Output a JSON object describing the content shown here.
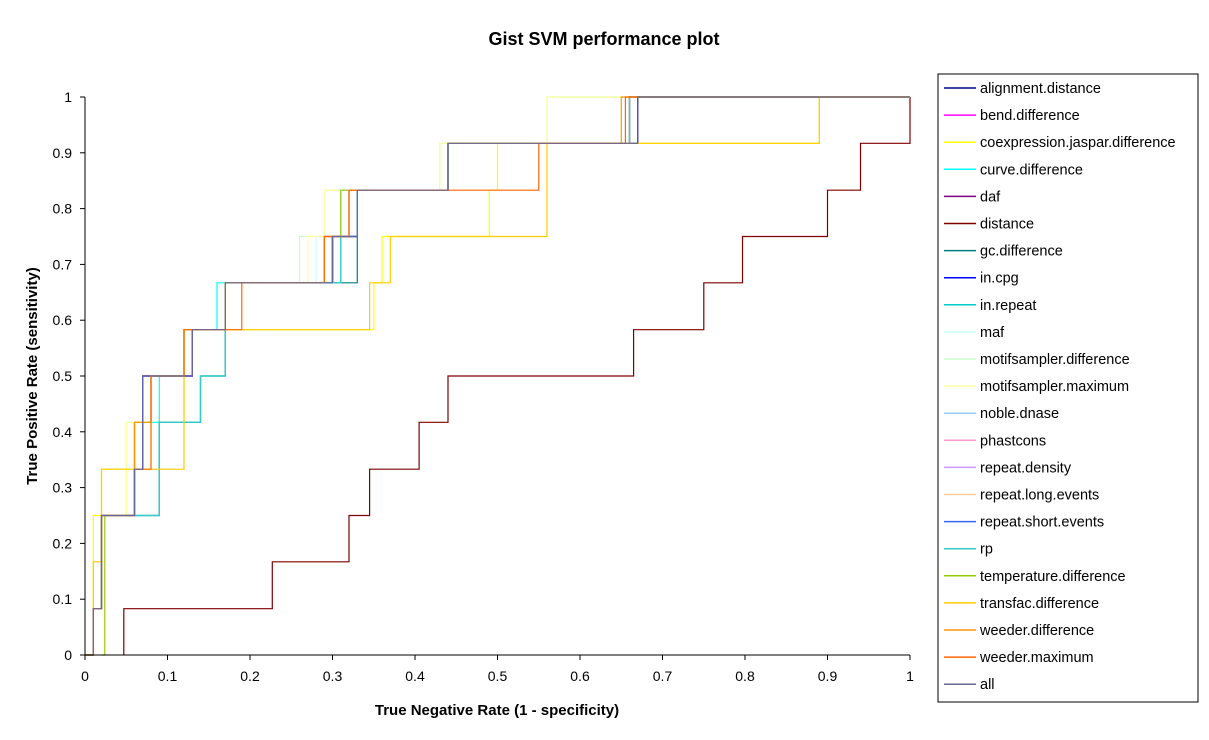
{
  "chart_data": {
    "type": "line",
    "title": "Gist SVM performance plot",
    "xlabel": "True Negative Rate (1 - specificity)",
    "ylabel": "True Positive Rate (sensitivity)",
    "xlim": [
      0,
      1
    ],
    "ylim": [
      0,
      1
    ],
    "xticks": [
      "0",
      "0.1",
      "0.2",
      "0.3",
      "0.4",
      "0.5",
      "0.6",
      "0.7",
      "0.8",
      "0.9",
      "1"
    ],
    "yticks": [
      "0",
      "0.1",
      "0.2",
      "0.3",
      "0.4",
      "0.5",
      "0.6",
      "0.7",
      "0.8",
      "0.9",
      "1"
    ],
    "grid": false,
    "legend_position": "right",
    "series": [
      {
        "name": "alignment.distance",
        "color": "#000080",
        "x": [
          0,
          0.01,
          0.02,
          0.06,
          0.07,
          0.13,
          0.17,
          0.3,
          0.33,
          0.44,
          0.46,
          0.67,
          0.69,
          1
        ],
        "y": [
          0,
          0.083,
          0.25,
          0.333,
          0.5,
          0.583,
          0.667,
          0.75,
          0.833,
          0.917,
          0.917,
          1,
          1,
          1
        ]
      },
      {
        "name": "bend.difference",
        "color": "#FF00FF",
        "x": [
          0,
          0.01,
          0.02,
          0.06,
          0.07,
          0.13,
          0.17,
          0.3,
          0.33,
          0.44,
          0.46,
          0.66,
          0.69,
          1
        ],
        "y": [
          0,
          0.083,
          0.25,
          0.417,
          0.5,
          0.583,
          0.667,
          0.75,
          0.833,
          0.917,
          0.917,
          1,
          1,
          1
        ]
      },
      {
        "name": "coexpression.jaspar.difference",
        "color": "#FFFF00",
        "x": [
          0,
          0.01,
          0.02,
          0.06,
          0.08,
          0.12,
          0.17,
          0.19,
          0.35,
          0.36,
          0.49,
          0.5,
          0.56,
          0.89,
          1
        ],
        "y": [
          0,
          0.25,
          0.333,
          0.333,
          0.417,
          0.583,
          0.583,
          0.583,
          0.667,
          0.75,
          0.833,
          0.917,
          0.917,
          1,
          1
        ]
      },
      {
        "name": "curve.difference",
        "color": "#00FFFF",
        "x": [
          0,
          0.01,
          0.02,
          0.06,
          0.09,
          0.12,
          0.16,
          0.29,
          0.32,
          0.44,
          0.46,
          0.66,
          0.69,
          1
        ],
        "y": [
          0,
          0.083,
          0.25,
          0.417,
          0.5,
          0.583,
          0.667,
          0.75,
          0.833,
          0.917,
          0.917,
          1,
          1,
          1
        ]
      },
      {
        "name": "daf",
        "color": "#800080",
        "x": [
          0,
          0.01,
          0.02,
          0.06,
          0.07,
          0.13,
          0.17,
          0.3,
          0.33,
          0.44,
          0.47,
          0.67,
          0.69,
          1
        ],
        "y": [
          0,
          0.083,
          0.25,
          0.333,
          0.5,
          0.583,
          0.667,
          0.75,
          0.833,
          0.917,
          0.917,
          1,
          1,
          1
        ]
      },
      {
        "name": "distance",
        "color": "#800000",
        "x": [
          0.047,
          0.047,
          0.227,
          0.227,
          0.32,
          0.32,
          0.345,
          0.345,
          0.405,
          0.405,
          0.44,
          0.44,
          0.665,
          0.665,
          0.75,
          0.75,
          0.797,
          0.797,
          0.9,
          0.9,
          0.94,
          0.94,
          1,
          1
        ],
        "y": [
          0,
          0.083,
          0.083,
          0.167,
          0.167,
          0.25,
          0.25,
          0.333,
          0.333,
          0.417,
          0.417,
          0.5,
          0.5,
          0.583,
          0.583,
          0.667,
          0.667,
          0.75,
          0.75,
          0.833,
          0.833,
          0.917,
          0.917,
          1
        ]
      },
      {
        "name": "gc.difference",
        "color": "#008080",
        "x": [
          0,
          0.01,
          0.02,
          0.06,
          0.09,
          0.14,
          0.17,
          0.31,
          0.33,
          0.44,
          0.46,
          0.66,
          0.69,
          1
        ],
        "y": [
          0,
          0.083,
          0.25,
          0.25,
          0.417,
          0.5,
          0.667,
          0.667,
          0.833,
          0.917,
          0.917,
          1,
          1,
          1
        ]
      },
      {
        "name": "in.cpg",
        "color": "#0000FF",
        "x": [
          0,
          0.01,
          0.02,
          0.06,
          0.07,
          0.13,
          0.17,
          0.3,
          0.33,
          0.44,
          0.46,
          0.67,
          0.69,
          1
        ],
        "y": [
          0,
          0.083,
          0.25,
          0.333,
          0.5,
          0.583,
          0.667,
          0.75,
          0.833,
          0.917,
          0.917,
          1,
          1,
          1
        ]
      },
      {
        "name": "in.repeat",
        "color": "#00CCCC",
        "x": [
          0,
          0.01,
          0.02,
          0.06,
          0.09,
          0.14,
          0.17,
          0.31,
          0.33,
          0.44,
          0.46,
          0.66,
          0.69,
          1
        ],
        "y": [
          0,
          0.083,
          0.25,
          0.25,
          0.417,
          0.5,
          0.667,
          0.75,
          0.833,
          0.917,
          0.917,
          1,
          1,
          1
        ]
      },
      {
        "name": "maf",
        "color": "#CCFFFF",
        "x": [
          0,
          0.01,
          0.02,
          0.06,
          0.08,
          0.12,
          0.17,
          0.28,
          0.31,
          0.43,
          0.46,
          0.56,
          0.62,
          1
        ],
        "y": [
          0,
          0.083,
          0.25,
          0.417,
          0.5,
          0.583,
          0.667,
          0.75,
          0.833,
          0.917,
          0.917,
          1,
          1,
          1
        ]
      },
      {
        "name": "motifsampler.difference",
        "color": "#CCFFCC",
        "x": [
          0,
          0.01,
          0.02,
          0.05,
          0.08,
          0.12,
          0.17,
          0.26,
          0.29,
          0.43,
          0.46,
          0.56,
          0.62,
          1
        ],
        "y": [
          0,
          0.083,
          0.25,
          0.417,
          0.5,
          0.583,
          0.667,
          0.75,
          0.833,
          0.917,
          0.917,
          1,
          1,
          1
        ]
      },
      {
        "name": "motifsampler.maximum",
        "color": "#FFFF99",
        "x": [
          0,
          0.01,
          0.02,
          0.05,
          0.08,
          0.12,
          0.17,
          0.27,
          0.29,
          0.43,
          0.5,
          0.56,
          0.62,
          1
        ],
        "y": [
          0,
          0.083,
          0.25,
          0.417,
          0.5,
          0.583,
          0.667,
          0.75,
          0.833,
          0.917,
          0.917,
          1,
          1,
          1
        ]
      },
      {
        "name": "noble.dnase",
        "color": "#99CCFF",
        "x": [
          0,
          0.01,
          0.02,
          0.06,
          0.08,
          0.12,
          0.17,
          0.29,
          0.31,
          0.44,
          0.46,
          0.66,
          0.69,
          1
        ],
        "y": [
          0,
          0.083,
          0.25,
          0.417,
          0.5,
          0.583,
          0.667,
          0.75,
          0.833,
          0.917,
          0.917,
          1,
          1,
          1
        ]
      },
      {
        "name": "phastcons",
        "color": "#FF99CC",
        "x": [
          0,
          0.01,
          0.02,
          0.06,
          0.08,
          0.12,
          0.17,
          0.29,
          0.32,
          0.44,
          0.46,
          0.66,
          0.69,
          1
        ],
        "y": [
          0,
          0.083,
          0.25,
          0.417,
          0.5,
          0.583,
          0.667,
          0.75,
          0.833,
          0.917,
          0.917,
          1,
          1,
          1
        ]
      },
      {
        "name": "repeat.density",
        "color": "#CC99FF",
        "x": [
          0,
          0.01,
          0.02,
          0.06,
          0.07,
          0.13,
          0.17,
          0.3,
          0.33,
          0.44,
          0.46,
          0.66,
          0.69,
          1
        ],
        "y": [
          0,
          0.083,
          0.25,
          0.333,
          0.5,
          0.583,
          0.667,
          0.75,
          0.833,
          0.917,
          0.917,
          1,
          1,
          1
        ]
      },
      {
        "name": "repeat.long.events",
        "color": "#FFCC99",
        "x": [
          0,
          0.01,
          0.02,
          0.06,
          0.08,
          0.12,
          0.17,
          0.29,
          0.32,
          0.44,
          0.46,
          0.66,
          0.69,
          1
        ],
        "y": [
          0,
          0.083,
          0.25,
          0.417,
          0.5,
          0.583,
          0.667,
          0.75,
          0.833,
          0.917,
          0.917,
          1,
          1,
          1
        ]
      },
      {
        "name": "repeat.short.events",
        "color": "#3366FF",
        "x": [
          0,
          0.01,
          0.02,
          0.06,
          0.07,
          0.13,
          0.17,
          0.3,
          0.33,
          0.44,
          0.46,
          0.66,
          0.69,
          1
        ],
        "y": [
          0,
          0.083,
          0.25,
          0.333,
          0.5,
          0.583,
          0.667,
          0.75,
          0.833,
          0.917,
          0.917,
          1,
          1,
          1
        ]
      },
      {
        "name": "rp",
        "color": "#33CCCC",
        "x": [
          0,
          0.01,
          0.02,
          0.06,
          0.09,
          0.14,
          0.17,
          0.31,
          0.33,
          0.44,
          0.46,
          0.66,
          0.69,
          1
        ],
        "y": [
          0,
          0.083,
          0.25,
          0.25,
          0.417,
          0.5,
          0.667,
          0.75,
          0.833,
          0.917,
          0.917,
          1,
          1,
          1
        ]
      },
      {
        "name": "temperature.difference",
        "color": "#99CC00",
        "x": [
          0.02,
          0.024,
          0.024,
          0.06,
          0.08,
          0.12,
          0.17,
          0.29,
          0.31,
          0.44,
          0.46,
          0.66,
          0.69,
          1
        ],
        "y": [
          0,
          0,
          0.25,
          0.417,
          0.5,
          0.583,
          0.667,
          0.75,
          0.833,
          0.917,
          0.917,
          1,
          1,
          1
        ]
      },
      {
        "name": "transfac.difference",
        "color": "#FFCC00",
        "x": [
          0,
          0.01,
          0.02,
          0.06,
          0.08,
          0.12,
          0.18,
          0.19,
          0.345,
          0.37,
          0.49,
          0.5,
          0.56,
          0.89,
          1
        ],
        "y": [
          0,
          0.167,
          0.333,
          0.333,
          0.333,
          0.583,
          0.583,
          0.583,
          0.667,
          0.75,
          0.75,
          0.75,
          0.917,
          1,
          1
        ]
      },
      {
        "name": "weeder.difference",
        "color": "#FF9900",
        "x": [
          0,
          0.01,
          0.02,
          0.06,
          0.08,
          0.12,
          0.17,
          0.29,
          0.32,
          0.44,
          0.46,
          0.65,
          0.69,
          1
        ],
        "y": [
          0,
          0.083,
          0.25,
          0.417,
          0.5,
          0.583,
          0.667,
          0.75,
          0.833,
          0.917,
          0.917,
          1,
          1,
          1
        ]
      },
      {
        "name": "weeder.maximum",
        "color": "#FF6600",
        "x": [
          0,
          0.01,
          0.02,
          0.06,
          0.08,
          0.12,
          0.19,
          0.29,
          0.32,
          0.44,
          0.55,
          0.655,
          0.69,
          1
        ],
        "y": [
          0,
          0.083,
          0.25,
          0.333,
          0.5,
          0.583,
          0.667,
          0.75,
          0.833,
          0.833,
          0.917,
          1,
          1,
          1
        ]
      },
      {
        "name": "all",
        "color": "#666699",
        "x": [
          0,
          0.01,
          0.02,
          0.06,
          0.07,
          0.13,
          0.17,
          0.3,
          0.33,
          0.44,
          0.46,
          0.67,
          0.69,
          1
        ],
        "y": [
          0,
          0.083,
          0.25,
          0.333,
          0.5,
          0.583,
          0.667,
          0.75,
          0.833,
          0.917,
          0.917,
          1,
          1,
          1
        ]
      }
    ]
  }
}
